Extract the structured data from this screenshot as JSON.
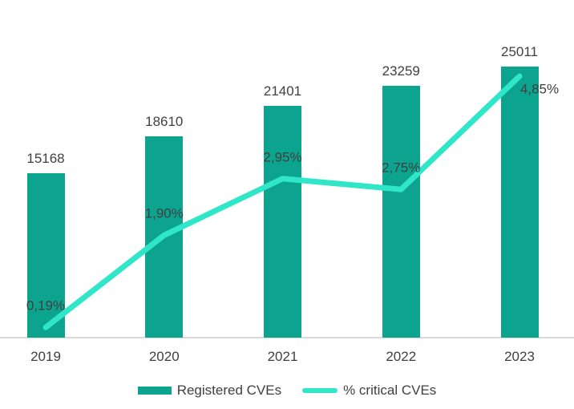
{
  "chart_data": {
    "type": "bar",
    "subtype": "bar-and-line-combo",
    "title": "",
    "xlabel": "",
    "ylabel": "",
    "categories": [
      "2019",
      "2020",
      "2021",
      "2022",
      "2023"
    ],
    "series": [
      {
        "name": "Registered CVEs",
        "type": "bar",
        "color": "#0CA48E",
        "values": [
          15168,
          18610,
          21401,
          23259,
          25011
        ],
        "data_labels": [
          "15168",
          "18610",
          "21401",
          "23259",
          "25011"
        ]
      },
      {
        "name": "% critical CVEs",
        "type": "line",
        "color": "#2FE6C9",
        "values": [
          0.19,
          1.9,
          2.95,
          2.75,
          4.85
        ],
        "data_labels": [
          "0,19%",
          "1,90%",
          "2,95%",
          "2,75%",
          "4,85%"
        ]
      }
    ],
    "bar_ylim": [
      0,
      26000
    ],
    "line_ylim": [
      0,
      6
    ],
    "grid": false,
    "y_axis_visible": false,
    "x_axis_visible": true,
    "legend_position": "bottom"
  },
  "colors": {
    "bar_series": "#0CA48E",
    "line_series": "#2FE6C9",
    "label_text": "#404040",
    "axis_line": "#D9D9D9",
    "background": "#FFFFFF"
  }
}
